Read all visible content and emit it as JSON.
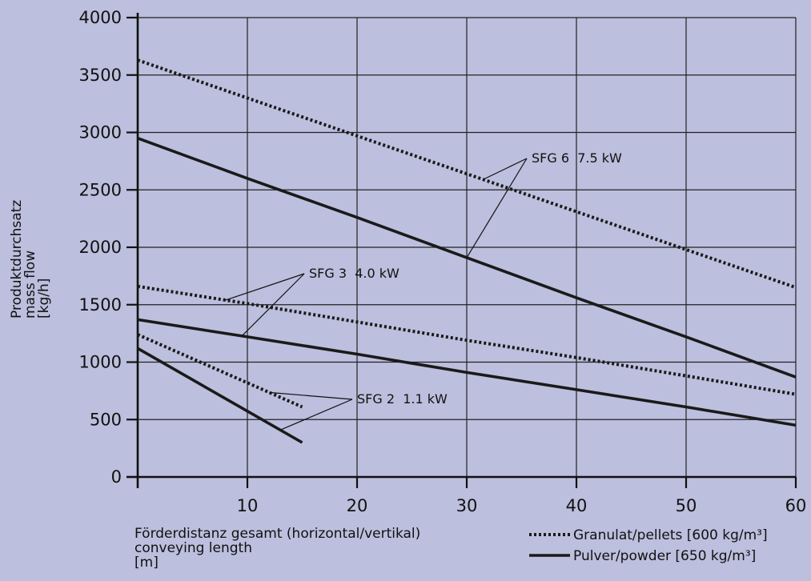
{
  "chart_data": {
    "type": "line",
    "title": "",
    "ylabel": [
      "Produktdurchsatz",
      "mass flow",
      "[kg/h]"
    ],
    "xlabel": [
      "Förderdistanz gesamt (horizontal/vertikal)",
      "conveying length",
      "[m]"
    ],
    "xlim": [
      0,
      60
    ],
    "ylim": [
      0,
      4000
    ],
    "xticks": [
      10,
      20,
      30,
      40,
      50,
      60
    ],
    "yticks": [
      0,
      500,
      1000,
      1500,
      2000,
      2500,
      3000,
      3500,
      4000
    ],
    "grid": true,
    "series": [
      {
        "label": "SFG 6 7.5 kW",
        "material": "granulat",
        "style": "dotted",
        "points": [
          [
            0,
            3630
          ],
          [
            10,
            3300
          ],
          [
            20,
            2970
          ],
          [
            30,
            2640
          ],
          [
            40,
            2310
          ],
          [
            50,
            1980
          ],
          [
            60,
            1650
          ]
        ]
      },
      {
        "label": "SFG 6 7.5 kW",
        "material": "pulver",
        "style": "solid",
        "points": [
          [
            0,
            2950
          ],
          [
            10,
            2600
          ],
          [
            20,
            2260
          ],
          [
            30,
            1910
          ],
          [
            40,
            1560
          ],
          [
            50,
            1220
          ],
          [
            60,
            870
          ]
        ]
      },
      {
        "label": "SFG 3 4.0 kW",
        "material": "granulat",
        "style": "dotted",
        "points": [
          [
            0,
            1660
          ],
          [
            10,
            1510
          ],
          [
            20,
            1350
          ],
          [
            30,
            1190
          ],
          [
            40,
            1040
          ],
          [
            50,
            880
          ],
          [
            60,
            720
          ]
        ]
      },
      {
        "label": "SFG 3 4.0 kW",
        "material": "pulver",
        "style": "solid",
        "points": [
          [
            0,
            1370
          ],
          [
            10,
            1220
          ],
          [
            20,
            1070
          ],
          [
            30,
            910
          ],
          [
            40,
            760
          ],
          [
            50,
            610
          ],
          [
            60,
            450
          ]
        ]
      },
      {
        "label": "SFG 2 1.1 kW",
        "material": "granulat",
        "style": "dotted",
        "points": [
          [
            0,
            1240
          ],
          [
            15,
            610
          ]
        ]
      },
      {
        "label": "SFG 2 1.1 kW",
        "material": "pulver",
        "style": "solid",
        "points": [
          [
            0,
            1120
          ],
          [
            15,
            300
          ]
        ]
      }
    ],
    "annotations": [
      {
        "text": "SFG 6  7.5 kW",
        "series": [
          0,
          1
        ]
      },
      {
        "text": "SFG 3  4.0 kW",
        "series": [
          2,
          3
        ]
      },
      {
        "text": "SFG 2  1.1 kW",
        "series": [
          4,
          5
        ]
      }
    ],
    "legend": {
      "placement": "bottom-right",
      "items": [
        {
          "style": "dotted",
          "label": "Granulat/pellets [600 kg/m³]"
        },
        {
          "style": "solid",
          "label": "Pulver/powder [650 kg/m³]"
        }
      ]
    }
  }
}
